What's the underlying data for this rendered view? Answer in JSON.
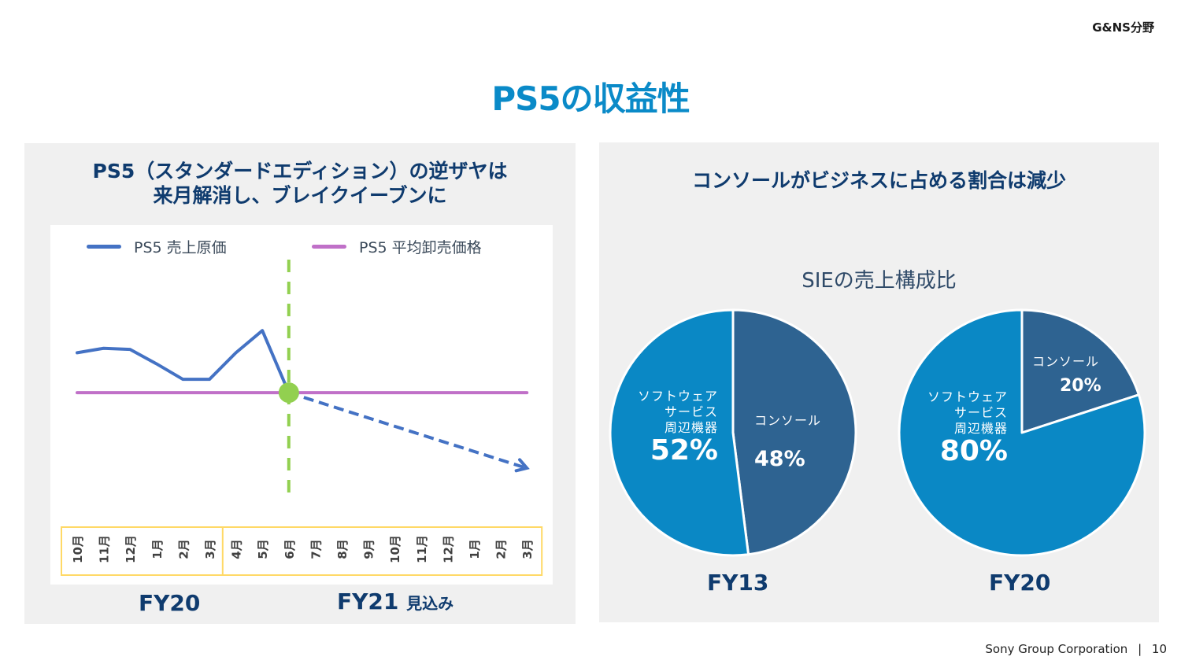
{
  "header": {
    "section_tag": "G&NS分野",
    "title": "PS5の収益性"
  },
  "left_panel": {
    "heading_line1": "PS5（スタンダードエディション）の逆ザヤは",
    "heading_line2": "来月解消し、ブレイクイーブンに",
    "fy_labels": {
      "fy20": "FY20",
      "fy21": "FY21",
      "fy21_suffix": "見込み"
    }
  },
  "right_panel": {
    "heading": "コンソールがビジネスに占める割合は減少",
    "subtitle": "SIEの売上構成比"
  },
  "chart_data": [
    {
      "type": "line",
      "title": "PS5（スタンダードエディション）の逆ザヤは来月解消し、ブレイクイーブンに",
      "categories": [
        "10月",
        "11月",
        "12月",
        "1月",
        "2月",
        "3月",
        "4月",
        "5月",
        "6月",
        "7月",
        "8月",
        "9月",
        "10月",
        "11月",
        "12月",
        "1月",
        "2月",
        "3月"
      ],
      "category_groups": [
        {
          "label": "FY20",
          "from": 0,
          "to": 5
        },
        {
          "label": "FY21 見込み",
          "from": 6,
          "to": 17
        }
      ],
      "series": [
        {
          "name": "PS5 売上原価",
          "color": "#4472c4",
          "style": "solid",
          "values": [
            1.18,
            1.2,
            1.195,
            1.13,
            1.06,
            1.06,
            1.18,
            1.28,
            1.0,
            null,
            null,
            null,
            null,
            null,
            null,
            null,
            null,
            null
          ]
        },
        {
          "name": "PS5 売上原価 (見込み)",
          "color": "#4472c4",
          "style": "dashed-arrow",
          "values": [
            null,
            null,
            null,
            null,
            null,
            null,
            null,
            null,
            1.0,
            null,
            null,
            null,
            null,
            null,
            null,
            null,
            null,
            0.66
          ]
        },
        {
          "name": "PS5 平均卸売価格",
          "color": "#c070c8",
          "style": "solid",
          "values": [
            1.0,
            1.0,
            1.0,
            1.0,
            1.0,
            1.0,
            1.0,
            1.0,
            1.0,
            1.0,
            1.0,
            1.0,
            1.0,
            1.0,
            1.0,
            1.0,
            1.0,
            1.0
          ]
        }
      ],
      "annotations": [
        {
          "type": "vertical-dashed-line",
          "at_category_index": 8,
          "color": "#92d050"
        },
        {
          "type": "break-even-marker",
          "at_category_index": 8,
          "value": 1.0,
          "color": "#92d050"
        }
      ],
      "ylim": [
        0.5,
        1.6
      ],
      "y_axis_shown": false,
      "grid": false,
      "legend": "top",
      "axis_box_color": "#ffd966"
    },
    {
      "type": "pie",
      "title": "FY13",
      "slices": [
        {
          "label": "コンソール",
          "value": 48,
          "display": "48%",
          "color": "#2e6391"
        },
        {
          "label_lines": [
            "ソフトウェア",
            "サービス",
            "周辺機器"
          ],
          "label": "ソフトウェア サービス 周辺機器",
          "value": 52,
          "display": "52%",
          "color": "#0a88c5"
        }
      ]
    },
    {
      "type": "pie",
      "title": "FY20",
      "slices": [
        {
          "label": "コンソール",
          "value": 20,
          "display": "20%",
          "color": "#2e6391"
        },
        {
          "label_lines": [
            "ソフトウェア",
            "サービス",
            "周辺機器"
          ],
          "label": "ソフトウェア サービス 周辺機器",
          "value": 80,
          "display": "80%",
          "color": "#0a88c5"
        }
      ]
    }
  ],
  "footer": {
    "company": "Sony Group Corporation",
    "separator": "|",
    "page": "10"
  }
}
